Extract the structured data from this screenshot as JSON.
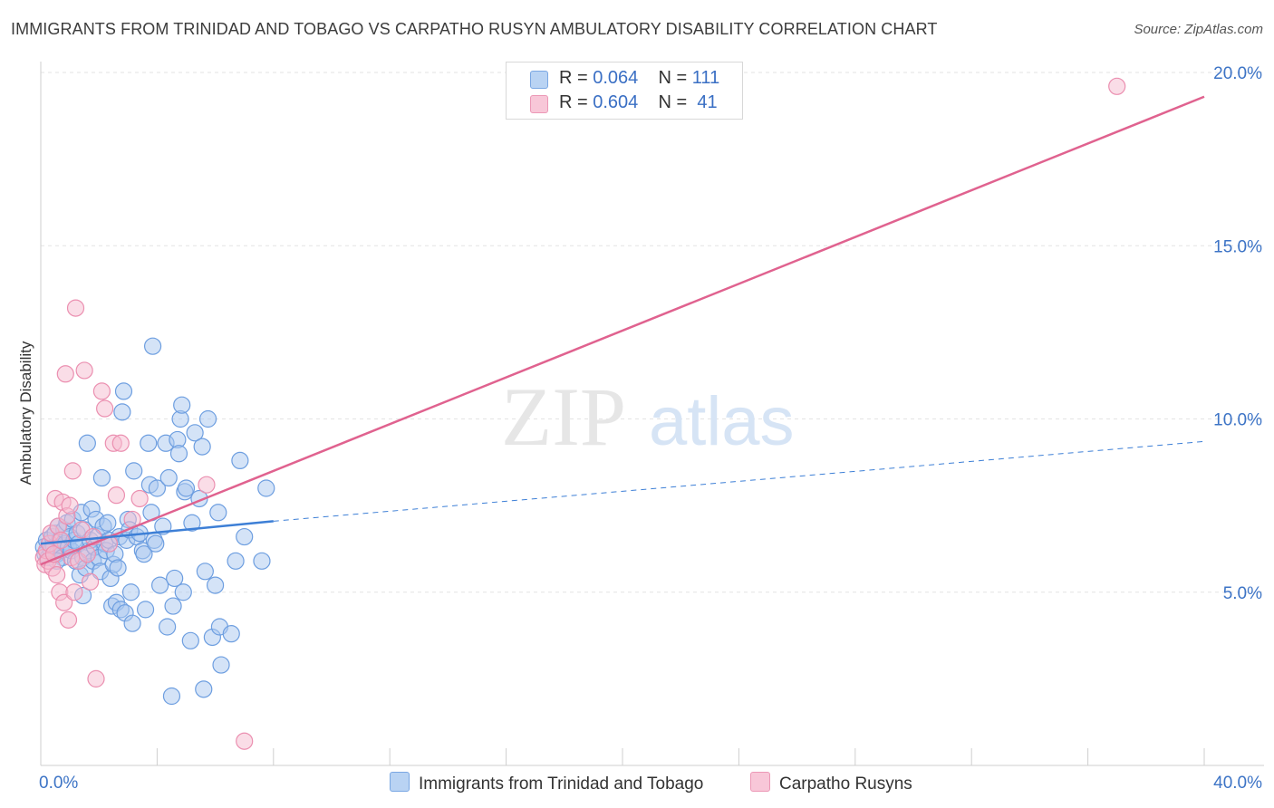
{
  "title": "IMMIGRANTS FROM TRINIDAD AND TOBAGO VS CARPATHO RUSYN AMBULATORY DISABILITY CORRELATION CHART",
  "source": "Source: ZipAtlas.com",
  "watermark": {
    "zip": "ZIP",
    "atlas": "atlas"
  },
  "legend": {
    "rows": [
      {
        "r_label": "R =",
        "r_value": "0.064",
        "n_label": "N =",
        "n_value": "111"
      },
      {
        "r_label": "R =",
        "r_value": "0.604",
        "n_label": "N =",
        "n_value": "41"
      }
    ]
  },
  "chart_data": {
    "type": "scatter",
    "title": "IMMIGRANTS FROM TRINIDAD AND TOBAGO VS CARPATHO RUSYN AMBULATORY DISABILITY CORRELATION CHART",
    "xlabel": "",
    "ylabel": "Ambulatory Disability",
    "xlim": [
      0,
      40
    ],
    "ylim": [
      0,
      20.8
    ],
    "x_tick_labels": [
      "0.0%",
      "40.0%"
    ],
    "y_ticks": [
      5,
      10,
      15,
      20
    ],
    "y_tick_labels": [
      "5.0%",
      "10.0%",
      "15.0%",
      "20.0%"
    ],
    "grid": true,
    "legend_position": "bottom-center",
    "colors": {
      "blue_fill": "#a9c8f0",
      "blue_stroke": "#6d9ee0",
      "blue_line": "#3d7fd6",
      "pink_fill": "#f6bcd0",
      "pink_stroke": "#eb8fb0",
      "pink_line": "#e0628f"
    },
    "series": [
      {
        "name": "Immigrants from Trinidad and Tobago",
        "color": "#a9c8f0",
        "trend": {
          "x": [
            0,
            8
          ],
          "y": [
            6.4,
            7.05
          ],
          "dashed_extension_to": [
            40,
            9.35
          ]
        },
        "points": [
          [
            0.1,
            6.3
          ],
          [
            0.15,
            6.1
          ],
          [
            0.2,
            6.5
          ],
          [
            0.25,
            6.0
          ],
          [
            0.3,
            6.4
          ],
          [
            0.35,
            6.2
          ],
          [
            0.4,
            6.6
          ],
          [
            0.45,
            6.3
          ],
          [
            0.5,
            6.7
          ],
          [
            0.55,
            6.1
          ],
          [
            0.6,
            6.9
          ],
          [
            0.65,
            6.5
          ],
          [
            0.7,
            6.2
          ],
          [
            0.75,
            6.0
          ],
          [
            0.8,
            6.8
          ],
          [
            0.85,
            6.4
          ],
          [
            0.9,
            7.0
          ],
          [
            0.95,
            6.3
          ],
          [
            1.0,
            6.6
          ],
          [
            1.05,
            6.2
          ],
          [
            1.1,
            7.1
          ],
          [
            1.15,
            6.5
          ],
          [
            1.2,
            5.9
          ],
          [
            1.25,
            6.7
          ],
          [
            1.3,
            6.4
          ],
          [
            1.35,
            5.5
          ],
          [
            1.4,
            7.3
          ],
          [
            1.45,
            6.0
          ],
          [
            1.5,
            6.8
          ],
          [
            1.55,
            5.7
          ],
          [
            1.6,
            9.3
          ],
          [
            1.65,
            6.2
          ],
          [
            1.7,
            6.5
          ],
          [
            1.75,
            7.4
          ],
          [
            1.8,
            5.9
          ],
          [
            1.85,
            6.3
          ],
          [
            1.9,
            7.1
          ],
          [
            1.95,
            6.6
          ],
          [
            2.0,
            6.0
          ],
          [
            2.05,
            5.6
          ],
          [
            2.1,
            8.3
          ],
          [
            2.15,
            6.9
          ],
          [
            2.2,
            6.4
          ],
          [
            2.25,
            6.2
          ],
          [
            2.3,
            7.0
          ],
          [
            2.35,
            6.5
          ],
          [
            2.4,
            5.4
          ],
          [
            2.45,
            4.6
          ],
          [
            2.5,
            5.8
          ],
          [
            2.55,
            6.1
          ],
          [
            2.6,
            4.7
          ],
          [
            2.65,
            5.7
          ],
          [
            2.7,
            6.6
          ],
          [
            2.75,
            4.5
          ],
          [
            2.8,
            10.2
          ],
          [
            2.85,
            10.8
          ],
          [
            2.9,
            4.4
          ],
          [
            2.95,
            6.5
          ],
          [
            3.0,
            7.1
          ],
          [
            3.05,
            6.8
          ],
          [
            3.1,
            5.0
          ],
          [
            3.15,
            4.1
          ],
          [
            3.2,
            8.5
          ],
          [
            3.3,
            6.6
          ],
          [
            3.4,
            6.7
          ],
          [
            3.5,
            6.2
          ],
          [
            3.55,
            6.1
          ],
          [
            3.6,
            4.5
          ],
          [
            3.7,
            9.3
          ],
          [
            3.75,
            8.1
          ],
          [
            3.8,
            7.3
          ],
          [
            3.9,
            6.5
          ],
          [
            3.95,
            6.4
          ],
          [
            4.0,
            8.0
          ],
          [
            4.1,
            5.2
          ],
          [
            4.2,
            6.9
          ],
          [
            4.3,
            9.3
          ],
          [
            4.35,
            4.0
          ],
          [
            4.4,
            8.3
          ],
          [
            4.5,
            2.0
          ],
          [
            4.55,
            4.6
          ],
          [
            4.6,
            5.4
          ],
          [
            4.7,
            9.4
          ],
          [
            4.75,
            9.0
          ],
          [
            4.8,
            10.0
          ],
          [
            4.85,
            10.4
          ],
          [
            4.9,
            5.0
          ],
          [
            4.95,
            7.9
          ],
          [
            5.0,
            8.0
          ],
          [
            5.15,
            3.6
          ],
          [
            5.2,
            7.0
          ],
          [
            5.3,
            9.6
          ],
          [
            5.45,
            7.7
          ],
          [
            5.55,
            9.2
          ],
          [
            5.6,
            2.2
          ],
          [
            5.65,
            5.6
          ],
          [
            5.75,
            10.0
          ],
          [
            5.9,
            3.7
          ],
          [
            6.0,
            5.2
          ],
          [
            6.1,
            7.3
          ],
          [
            6.15,
            4.0
          ],
          [
            6.2,
            2.9
          ],
          [
            6.55,
            3.8
          ],
          [
            6.7,
            5.9
          ],
          [
            6.85,
            8.8
          ],
          [
            7.0,
            6.6
          ],
          [
            7.6,
            5.9
          ],
          [
            7.75,
            8.0
          ],
          [
            3.85,
            12.1
          ],
          [
            1.45,
            4.9
          ],
          [
            0.55,
            5.9
          ]
        ]
      },
      {
        "name": "Carpatho Rusyns",
        "color": "#f6bcd0",
        "trend": {
          "x": [
            0,
            40
          ],
          "y": [
            5.8,
            19.3
          ]
        },
        "points": [
          [
            0.1,
            6.0
          ],
          [
            0.15,
            5.8
          ],
          [
            0.2,
            6.2
          ],
          [
            0.25,
            5.9
          ],
          [
            0.3,
            6.4
          ],
          [
            0.35,
            6.7
          ],
          [
            0.4,
            5.7
          ],
          [
            0.45,
            6.1
          ],
          [
            0.5,
            7.7
          ],
          [
            0.55,
            5.5
          ],
          [
            0.6,
            6.9
          ],
          [
            0.65,
            5.0
          ],
          [
            0.7,
            6.5
          ],
          [
            0.75,
            7.6
          ],
          [
            0.8,
            4.7
          ],
          [
            0.85,
            11.3
          ],
          [
            0.9,
            7.2
          ],
          [
            0.95,
            4.2
          ],
          [
            1.0,
            7.5
          ],
          [
            1.05,
            6.0
          ],
          [
            1.1,
            8.5
          ],
          [
            1.15,
            5.0
          ],
          [
            1.2,
            13.2
          ],
          [
            1.3,
            5.9
          ],
          [
            1.4,
            6.8
          ],
          [
            1.5,
            11.4
          ],
          [
            1.6,
            6.1
          ],
          [
            1.7,
            5.3
          ],
          [
            1.8,
            6.6
          ],
          [
            1.9,
            2.5
          ],
          [
            2.1,
            10.8
          ],
          [
            2.2,
            10.3
          ],
          [
            2.35,
            6.4
          ],
          [
            2.5,
            9.3
          ],
          [
            2.6,
            7.8
          ],
          [
            2.75,
            9.3
          ],
          [
            3.15,
            7.1
          ],
          [
            3.4,
            7.7
          ],
          [
            5.7,
            8.1
          ],
          [
            7.0,
            0.7
          ],
          [
            37.0,
            19.6
          ]
        ]
      }
    ]
  },
  "bottom_legend": [
    {
      "label": "Immigrants from Trinidad and Tobago"
    },
    {
      "label": "Carpatho Rusyns"
    }
  ]
}
